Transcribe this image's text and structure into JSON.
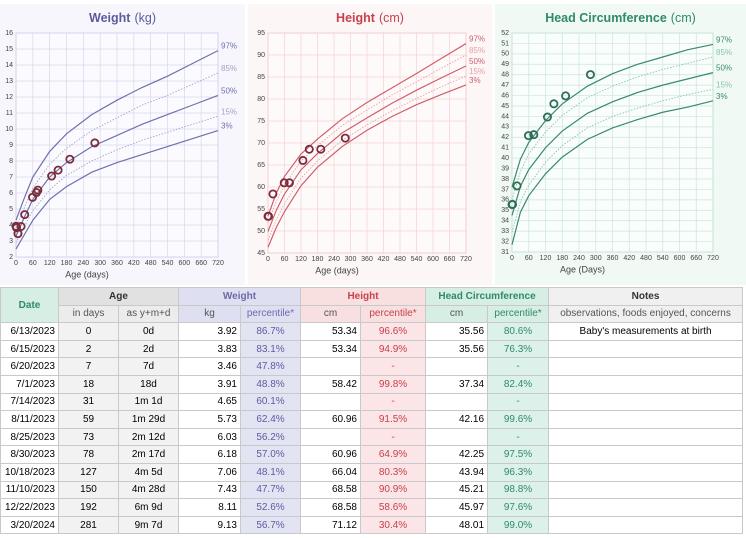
{
  "chart_data": [
    {
      "type": "line",
      "title": "Weight",
      "unit": "(kg)",
      "xlabel": "Age (days)",
      "x": [
        0,
        30,
        60,
        120,
        180,
        270,
        360,
        450,
        540,
        630,
        720
      ],
      "xlim": [
        0,
        720
      ],
      "xticks": [
        0,
        60,
        120,
        180,
        240,
        300,
        360,
        420,
        480,
        540,
        600,
        660,
        720
      ],
      "ylim": [
        2,
        16
      ],
      "yticks": [
        2,
        3,
        4,
        5,
        6,
        7,
        8,
        9,
        10,
        11,
        12,
        13,
        14,
        15,
        16
      ],
      "grid": true,
      "series": [
        {
          "name": "97%",
          "color": "#6f6fae",
          "dashed": false,
          "values": [
            4.3,
            5.7,
            7.0,
            8.6,
            9.7,
            10.9,
            11.8,
            12.6,
            13.3,
            14.1,
            14.9
          ]
        },
        {
          "name": "85%",
          "color": "#a3a3cc",
          "dashed": true,
          "values": [
            3.8,
            5.1,
            6.3,
            7.8,
            8.8,
            9.9,
            10.7,
            11.5,
            12.1,
            12.8,
            13.5
          ]
        },
        {
          "name": "50%",
          "color": "#6f6fae",
          "dashed": false,
          "values": [
            3.3,
            4.5,
            5.6,
            7.0,
            7.9,
            8.9,
            9.6,
            10.3,
            10.9,
            11.5,
            12.1
          ]
        },
        {
          "name": "15%",
          "color": "#a3a3cc",
          "dashed": true,
          "values": [
            2.9,
            3.9,
            4.9,
            6.2,
            7.1,
            8.0,
            8.7,
            9.3,
            9.8,
            10.3,
            10.8
          ]
        },
        {
          "name": "3%",
          "color": "#6f6fae",
          "dashed": false,
          "values": [
            2.5,
            3.4,
            4.3,
            5.6,
            6.4,
            7.3,
            7.9,
            8.4,
            8.9,
            9.4,
            9.9
          ]
        }
      ],
      "measurements": {
        "color": "#7b2d3b",
        "x": [
          0,
          2,
          7,
          18,
          31,
          59,
          73,
          78,
          127,
          150,
          192,
          281
        ],
        "values": [
          3.92,
          3.83,
          3.46,
          3.91,
          4.65,
          5.73,
          6.03,
          6.18,
          7.06,
          7.43,
          8.11,
          9.13
        ]
      }
    },
    {
      "type": "line",
      "title": "Height",
      "unit": "(cm)",
      "xlabel": "Age (days)",
      "x": [
        0,
        30,
        60,
        120,
        180,
        270,
        360,
        450,
        540,
        630,
        720
      ],
      "xlim": [
        0,
        720
      ],
      "xticks": [
        0,
        60,
        120,
        180,
        240,
        300,
        360,
        420,
        480,
        540,
        600,
        660,
        720
      ],
      "ylim": [
        45,
        95
      ],
      "yticks": [
        45,
        50,
        55,
        60,
        65,
        70,
        75,
        80,
        85,
        90,
        95
      ],
      "grid": true,
      "series": [
        {
          "name": "97%",
          "color": "#cf5f6a",
          "dashed": false,
          "values": [
            53.4,
            58.6,
            62.4,
            67.5,
            70.9,
            75.5,
            79.2,
            82.5,
            85.8,
            89.2,
            92.6
          ]
        },
        {
          "name": "85%",
          "color": "#e6a0a6",
          "dashed": true,
          "values": [
            51.8,
            56.7,
            60.5,
            65.9,
            69.4,
            74.0,
            77.5,
            80.9,
            83.9,
            87.0,
            90.0
          ]
        },
        {
          "name": "50%",
          "color": "#cf5f6a",
          "dashed": false,
          "values": [
            49.9,
            54.7,
            58.4,
            63.9,
            67.6,
            72.3,
            75.7,
            79.0,
            82.0,
            84.8,
            87.5
          ]
        },
        {
          "name": "15%",
          "color": "#e6a0a6",
          "dashed": true,
          "values": [
            47.9,
            52.6,
            56.2,
            62.0,
            65.9,
            70.6,
            74.1,
            77.3,
            80.1,
            82.8,
            85.2
          ]
        },
        {
          "name": "3%",
          "color": "#cf5f6a",
          "dashed": false,
          "values": [
            46.3,
            50.8,
            54.4,
            60.3,
            64.5,
            69.2,
            72.9,
            76.0,
            78.7,
            81.0,
            83.2
          ]
        }
      ],
      "measurements": {
        "color": "#7b2d3b",
        "x": [
          0,
          2,
          18,
          59,
          78,
          127,
          150,
          192,
          281
        ],
        "values": [
          53.34,
          53.34,
          58.42,
          60.96,
          60.96,
          66.04,
          68.58,
          68.58,
          71.12
        ]
      }
    },
    {
      "type": "line",
      "title": "Head Circumference",
      "unit": "(cm)",
      "xlabel": "Age (Days)",
      "x": [
        0,
        30,
        60,
        120,
        180,
        270,
        360,
        450,
        540,
        630,
        720
      ],
      "xlim": [
        0,
        720
      ],
      "xticks": [
        0,
        60,
        120,
        180,
        240,
        300,
        360,
        420,
        480,
        540,
        600,
        660,
        720
      ],
      "ylim": [
        31,
        52
      ],
      "yticks": [
        31,
        32,
        33,
        34,
        35,
        36,
        37,
        38,
        39,
        40,
        41,
        42,
        43,
        44,
        45,
        46,
        47,
        48,
        49,
        50,
        51,
        52
      ],
      "grid": true,
      "series": [
        {
          "name": "97%",
          "color": "#3a8a6c",
          "dashed": false,
          "values": [
            37.2,
            39.9,
            41.5,
            43.6,
            45.2,
            46.9,
            48.1,
            49.0,
            49.7,
            50.4,
            50.9
          ]
        },
        {
          "name": "85%",
          "color": "#8cc2ad",
          "dashed": true,
          "values": [
            36.0,
            38.7,
            40.4,
            42.5,
            44.1,
            45.8,
            46.9,
            47.8,
            48.5,
            49.1,
            49.7
          ]
        },
        {
          "name": "50%",
          "color": "#3a8a6c",
          "dashed": false,
          "values": [
            34.5,
            37.3,
            38.9,
            41.0,
            42.6,
            44.3,
            45.4,
            46.3,
            47.0,
            47.6,
            48.2
          ]
        },
        {
          "name": "15%",
          "color": "#8cc2ad",
          "dashed": true,
          "values": [
            32.9,
            35.8,
            37.4,
            39.6,
            41.2,
            42.9,
            44.0,
            44.8,
            45.5,
            46.1,
            46.6
          ]
        },
        {
          "name": "3%",
          "color": "#3a8a6c",
          "dashed": false,
          "values": [
            31.7,
            34.8,
            36.4,
            38.5,
            40.1,
            41.8,
            42.9,
            43.7,
            44.4,
            44.9,
            45.5
          ]
        }
      ],
      "measurements": {
        "color": "#2f6e56",
        "x": [
          0,
          2,
          18,
          59,
          78,
          127,
          150,
          192,
          281
        ],
        "values": [
          35.56,
          35.56,
          37.34,
          42.16,
          42.25,
          43.94,
          45.21,
          45.97,
          48.01
        ]
      }
    }
  ],
  "table": {
    "groups": [
      "Date",
      "Age",
      "Weight",
      "Height",
      "Head Circumference",
      "Notes"
    ],
    "subheaders": [
      "in days",
      "as y+m+d",
      "kg",
      "percentile*",
      "cm",
      "percentile*",
      "cm",
      "percentile*",
      "observations, foods enjoyed, concerns"
    ],
    "rows": [
      [
        "6/13/2023",
        "0",
        "0d",
        "3.92",
        "86.7%",
        "53.34",
        "96.6%",
        "35.56",
        "80.6%",
        "Baby's measurements at birth"
      ],
      [
        "6/15/2023",
        "2",
        "2d",
        "3.83",
        "83.1%",
        "53.34",
        "94.9%",
        "35.56",
        "76.3%",
        null
      ],
      [
        "6/20/2023",
        "7",
        "7d",
        "3.46",
        "47.8%",
        null,
        "-",
        null,
        "-",
        null
      ],
      [
        "7/1/2023",
        "18",
        "18d",
        "3.91",
        "48.8%",
        "58.42",
        "99.8%",
        "37.34",
        "82.4%",
        null
      ],
      [
        "7/14/2023",
        "31",
        "1m 1d",
        "4.65",
        "60.1%",
        null,
        "-",
        null,
        "-",
        null
      ],
      [
        "8/11/2023",
        "59",
        "1m 29d",
        "5.73",
        "62.4%",
        "60.96",
        "91.5%",
        "42.16",
        "99.6%",
        null
      ],
      [
        "8/25/2023",
        "73",
        "2m 12d",
        "6.03",
        "56.2%",
        null,
        "-",
        null,
        "-",
        null
      ],
      [
        "8/30/2023",
        "78",
        "2m 17d",
        "6.18",
        "57.0%",
        "60.96",
        "64.9%",
        "42.25",
        "97.5%",
        null
      ],
      [
        "10/18/2023",
        "127",
        "4m 5d",
        "7.06",
        "48.1%",
        "66.04",
        "80.3%",
        "43.94",
        "96.3%",
        null
      ],
      [
        "11/10/2023",
        "150",
        "4m 28d",
        "7.43",
        "47.7%",
        "68.58",
        "90.9%",
        "45.21",
        "98.8%",
        null
      ],
      [
        "12/22/2023",
        "192",
        "6m 9d",
        "8.11",
        "52.6%",
        "68.58",
        "58.6%",
        "45.97",
        "97.6%",
        null
      ],
      [
        "3/20/2024",
        "281",
        "9m 7d",
        "9.13",
        "56.7%",
        "71.12",
        "30.4%",
        "48.01",
        "99.0%",
        null
      ]
    ]
  }
}
